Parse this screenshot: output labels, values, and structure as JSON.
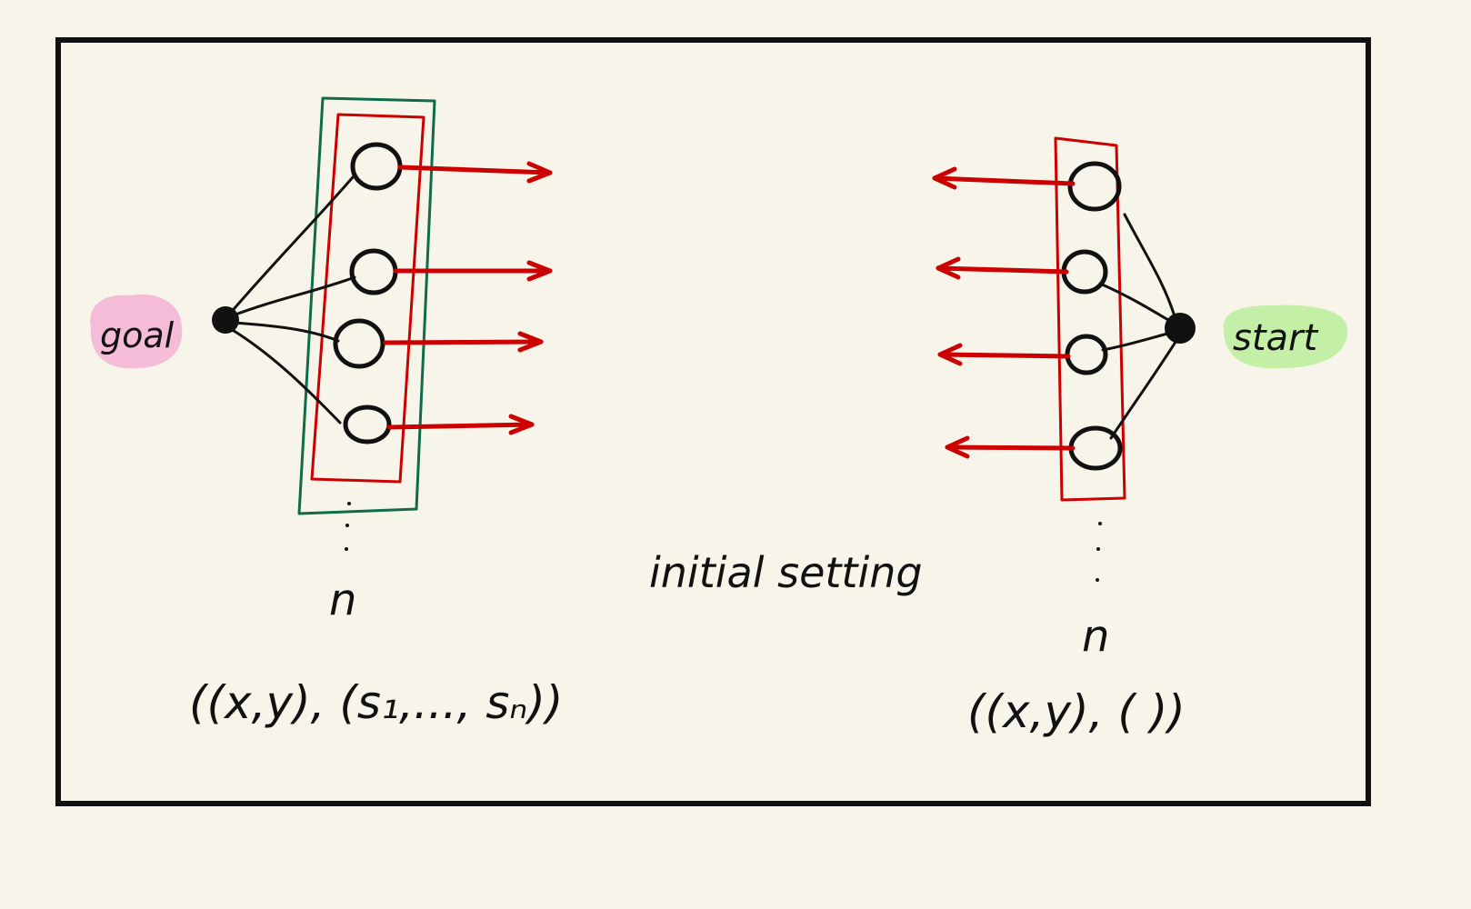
{
  "colors": {
    "background": "#f7f5ea",
    "ink": "#111111",
    "arrow_red": "#cc0000",
    "group_green": "#0f6b4a",
    "goal_highlight": "#f5bcd8",
    "start_highlight": "#c3efa6"
  },
  "left": {
    "endpoint_label": "goal",
    "count_label": "n",
    "tuple_label": "((x,y), (s₁,..., sₙ))",
    "node_count": 4
  },
  "right": {
    "endpoint_label": "start",
    "count_label": "n",
    "tuple_label": "((x,y), ( ))",
    "node_count": 4
  },
  "center": {
    "caption": "initial setting"
  },
  "icons": {
    "left_hub": "filled-dot-icon",
    "right_hub": "filled-dot-icon",
    "arrows": "arrow-icon"
  }
}
